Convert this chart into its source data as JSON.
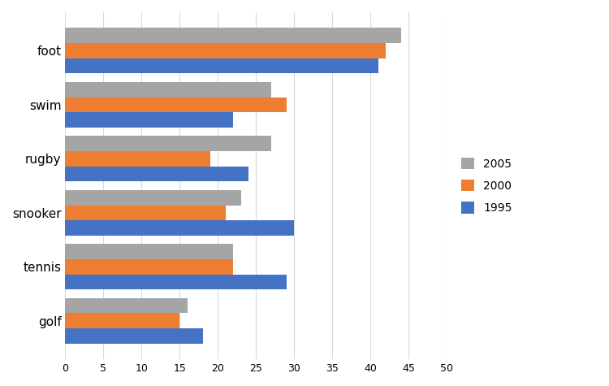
{
  "categories": [
    "foot",
    "swim",
    "rugby",
    "snooker",
    "tennis",
    "golf"
  ],
  "series": {
    "2005": [
      44,
      27,
      27,
      23,
      22,
      16
    ],
    "2000": [
      42,
      29,
      19,
      21,
      22,
      15
    ],
    "1995": [
      41,
      22,
      24,
      30,
      29,
      18
    ]
  },
  "colors": {
    "2005": "#a5a5a5",
    "2000": "#ed7d31",
    "1995": "#4472c4"
  },
  "xlim": [
    0,
    50
  ],
  "xticks": [
    0,
    5,
    10,
    15,
    20,
    25,
    30,
    35,
    40,
    45,
    50
  ],
  "legend_labels": [
    "2005",
    "2000",
    "1995"
  ],
  "bar_height": 0.28,
  "background_color": "#ffffff",
  "grid_color": "#d9d9d9"
}
